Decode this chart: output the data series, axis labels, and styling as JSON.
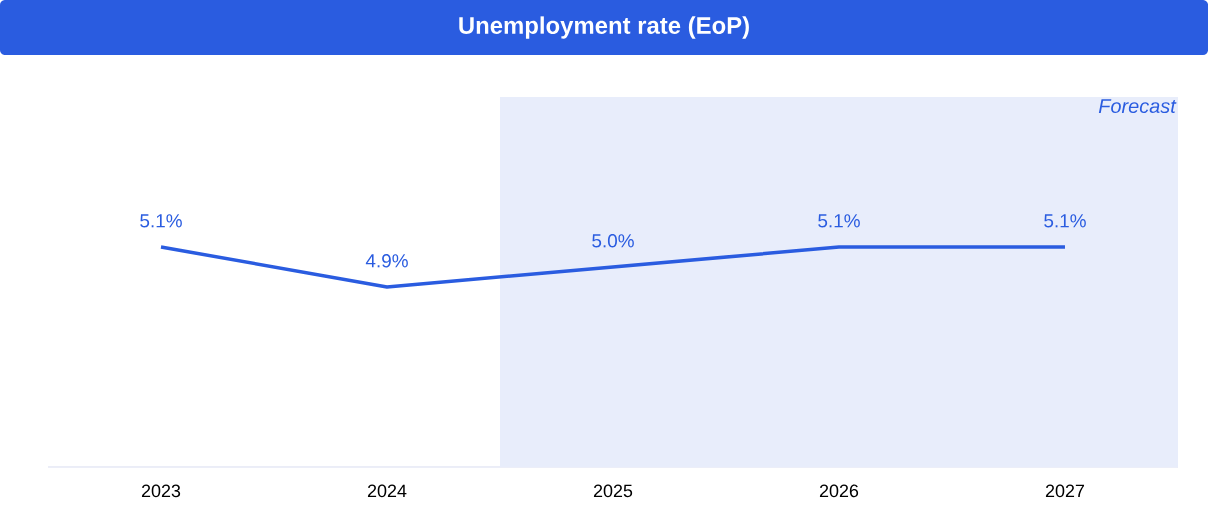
{
  "chart_data": {
    "type": "line",
    "title": "Unemployment rate (EoP)",
    "x": [
      2023,
      2024,
      2025,
      2026,
      2027
    ],
    "series": [
      {
        "color": "#2a5ce0",
        "values": [
          5.1,
          4.9,
          5.0,
          5.1,
          5.1
        ],
        "value_labels": [
          "5.1%",
          "4.9%",
          "5.0%",
          "5.1%",
          "5.1%"
        ]
      }
    ],
    "xlim": [
      2022.5,
      2027.5
    ],
    "xticks": [
      2023,
      2024,
      2025,
      2026,
      2027
    ],
    "ylim": [
      4.0,
      5.85
    ],
    "tick_labels": "x",
    "marker": "none",
    "line_style": "solid",
    "bands": [
      {
        "axis": "x",
        "from": 2024.5,
        "to": 2027.5,
        "label": "Forecast",
        "color": "#e8edfb"
      }
    ]
  }
}
